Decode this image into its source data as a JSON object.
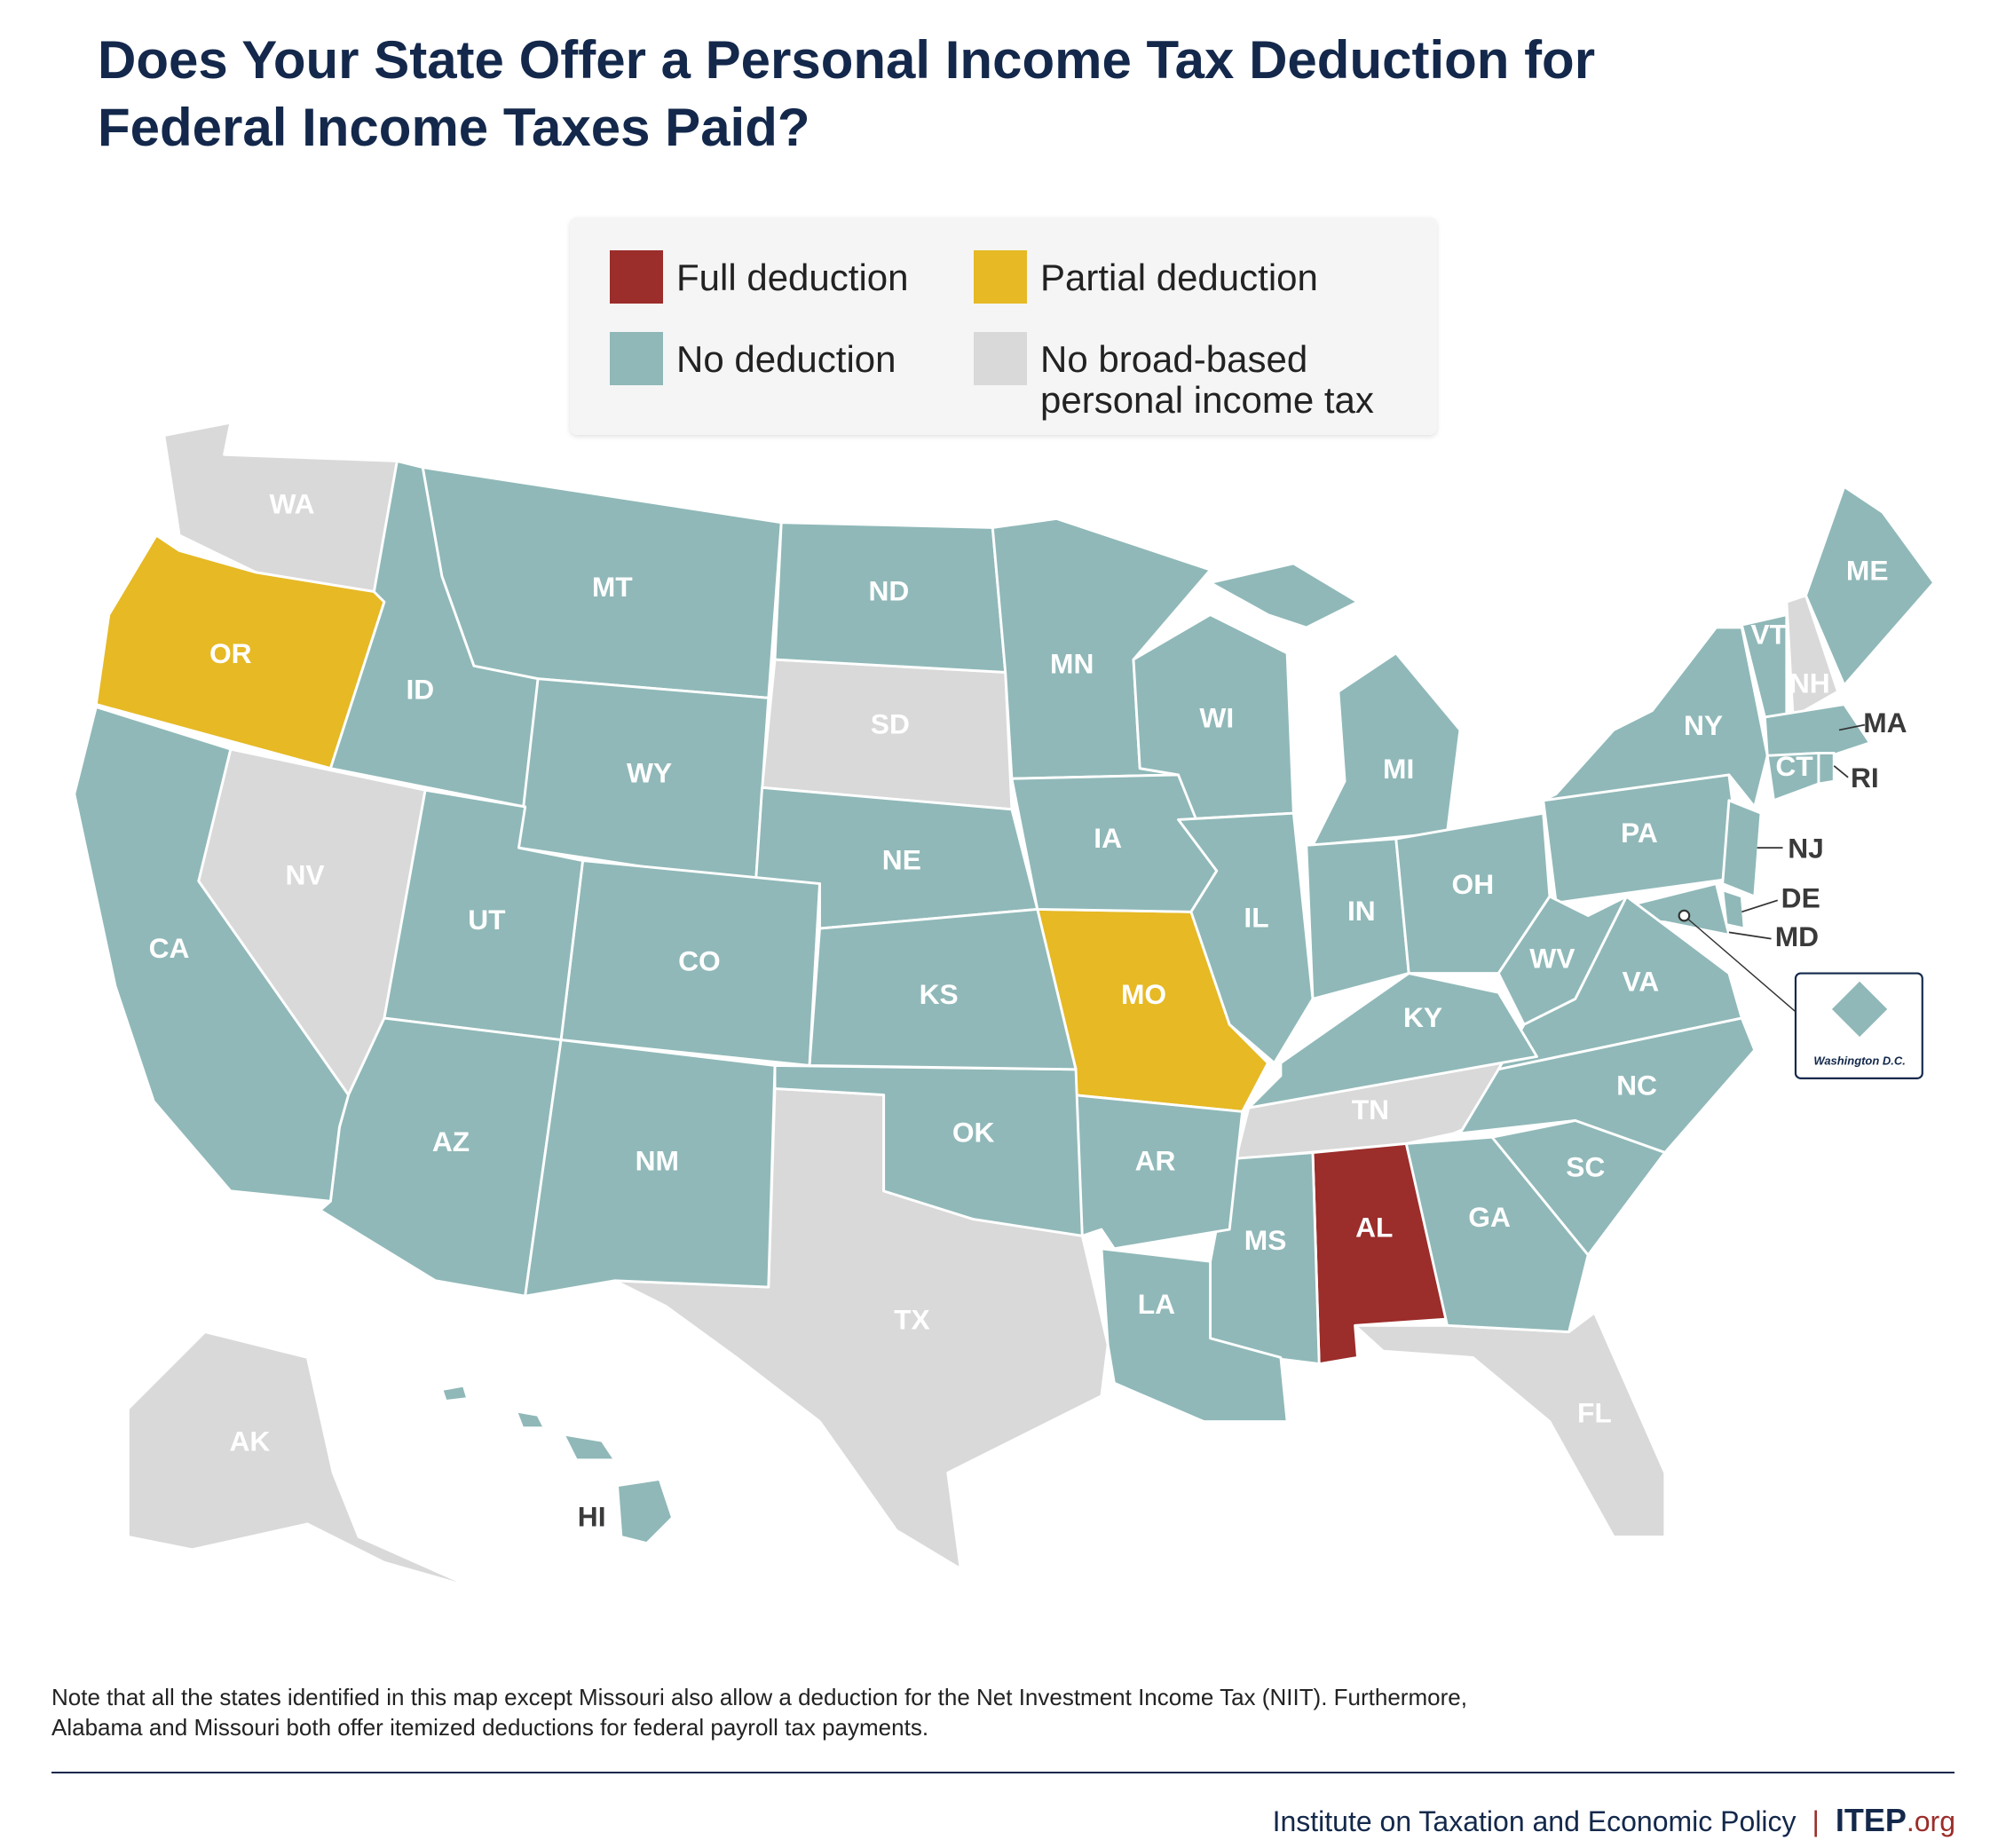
{
  "title": "Does Your State Offer a Personal Income Tax Deduction for Federal Income Taxes Paid?",
  "legend": [
    {
      "label": "Full deduction",
      "color": "#9b2d2a",
      "states": [
        "AL"
      ]
    },
    {
      "label": "Partial deduction",
      "color": "#e6b925",
      "states": [
        "OR",
        "MO"
      ]
    },
    {
      "label": "No deduction",
      "color": "#90b8b8",
      "states": [
        "MT",
        "ND",
        "MN",
        "WI",
        "MI",
        "ID",
        "WY",
        "NE",
        "IA",
        "IL",
        "IN",
        "OH",
        "PA",
        "NY",
        "VT",
        "ME",
        "MA",
        "CT",
        "RI",
        "NJ",
        "DE",
        "MD",
        "WV",
        "VA",
        "KY",
        "NC",
        "SC",
        "GA",
        "MS",
        "LA",
        "AR",
        "OK",
        "KS",
        "CO",
        "UT",
        "AZ",
        "NM",
        "CA",
        "HI",
        "Washington D.C."
      ]
    },
    {
      "label": "No broad-based personal income tax",
      "color": "#d9d9d9",
      "states": [
        "WA",
        "NV",
        "SD",
        "TX",
        "TN",
        "FL",
        "NH",
        "AK"
      ]
    }
  ],
  "note": "Note that all the states identified in this map except Missouri also allow a deduction for the Net Investment Income Tax (NIIT). Furthermore, Alabama and Missouri both offer itemized deductions for federal payroll tax payments.",
  "footer": {
    "organization": "Institute on Taxation and Economic Policy",
    "site": "ITEP",
    "site_suffix": ".org"
  }
}
